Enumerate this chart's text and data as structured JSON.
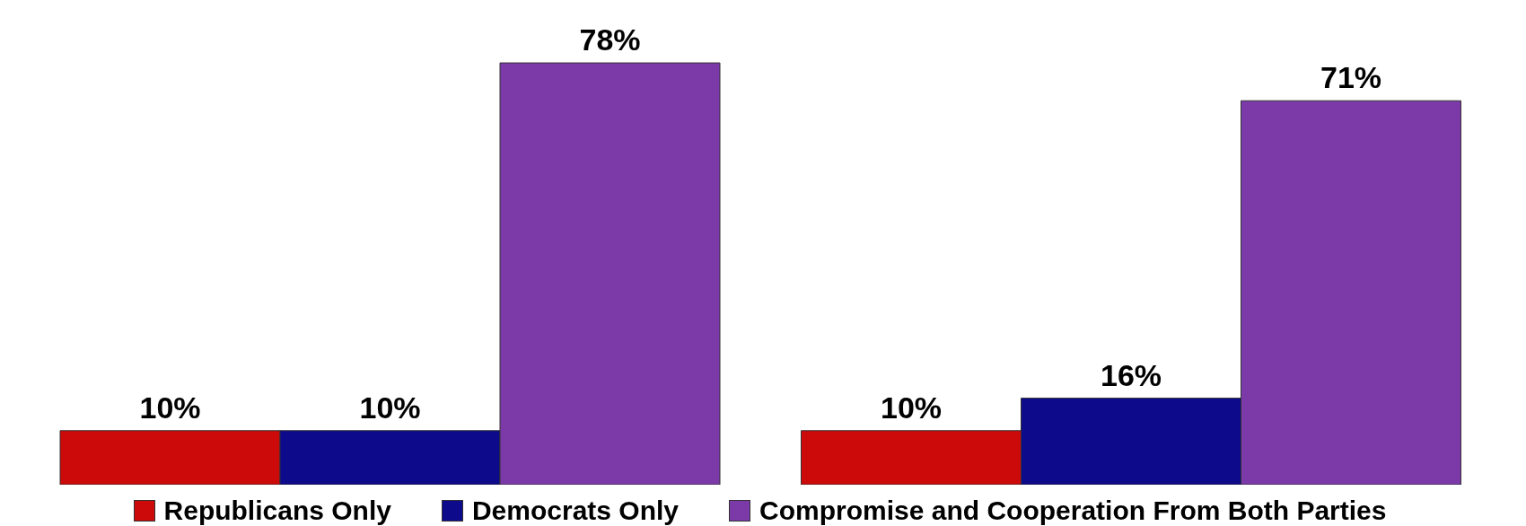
{
  "chart_data": {
    "type": "bar",
    "categories": [
      null,
      null
    ],
    "series": [
      {
        "name": "Republicans Only",
        "color": "#cc0a0a",
        "values": [
          10,
          10
        ],
        "value_labels": [
          "10%",
          "10%"
        ]
      },
      {
        "name": "Democrats Only",
        "color": "#0d0a8c",
        "values": [
          10,
          16
        ],
        "value_labels": [
          "10%",
          "16%"
        ]
      },
      {
        "name": "Compromise and Cooperation From Both Parties",
        "color": "#7b3aa8",
        "values": [
          78,
          71
        ],
        "value_labels": [
          "78%",
          "71%"
        ]
      }
    ],
    "legend": "bottom"
  }
}
